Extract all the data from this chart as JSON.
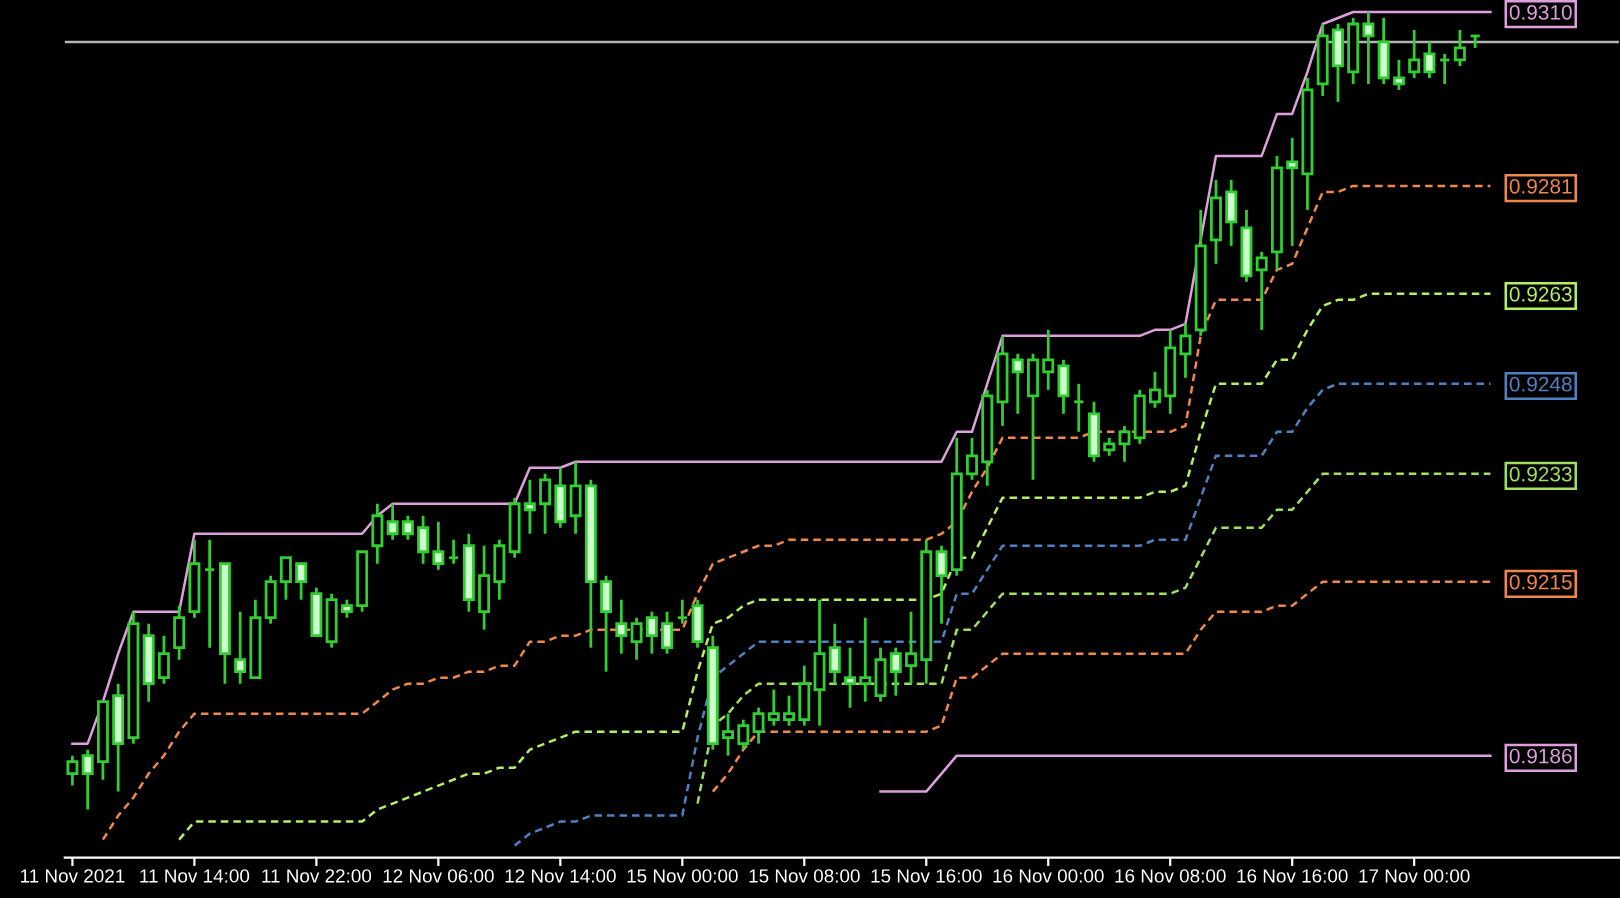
{
  "chart_data": {
    "type": "candlestick",
    "color": "#32cd32",
    "grid": false,
    "legend": false,
    "ylim": [
      0.9169,
      0.9312
    ],
    "yticks": [
      0.9186,
      0.9215,
      0.9233,
      0.9248,
      0.9263,
      0.9281,
      {
        "value": 0.931,
        "label": "0.9310"
      }
    ],
    "categories": [
      "11 Nov 2021",
      null,
      null,
      null,
      null,
      null,
      null,
      null,
      "11 Nov 14:00",
      null,
      null,
      null,
      null,
      null,
      null,
      null,
      "11 Nov 22:00",
      null,
      null,
      null,
      null,
      null,
      null,
      null,
      "12 Nov 06:00",
      null,
      null,
      null,
      null,
      null,
      null,
      null,
      "12 Nov 14:00",
      null,
      null,
      null,
      null,
      null,
      null,
      null,
      "15 Nov 00:00",
      null,
      null,
      null,
      null,
      null,
      null,
      null,
      "15 Nov 08:00",
      null,
      null,
      null,
      null,
      null,
      null,
      null,
      "15 Nov 16:00",
      null,
      null,
      null,
      null,
      null,
      null,
      null,
      "16 Nov 00:00",
      null,
      null,
      null,
      null,
      null,
      null,
      null,
      "16 Nov 08:00",
      null,
      null,
      null,
      null,
      null,
      null,
      null,
      "16 Nov 16:00",
      null,
      null,
      null,
      null,
      null,
      null,
      null,
      "17 Nov 00:00",
      null,
      null,
      null,
      null,
      null,
      null,
      null,
      null,
      null,
      null,
      null,
      null,
      null
    ],
    "ohlc": [
      [
        0.9183,
        0.9186,
        0.9181,
        0.9185
      ],
      [
        0.9186,
        0.9187,
        0.9177,
        0.9183
      ],
      [
        0.9185,
        0.9195,
        0.9182,
        0.9195
      ],
      [
        0.9196,
        0.9198,
        0.918,
        0.9188
      ],
      [
        0.9189,
        0.921,
        0.9188,
        0.9208
      ],
      [
        0.9206,
        0.9208,
        0.9195,
        0.9198
      ],
      [
        0.9199,
        0.9206,
        0.9198,
        0.9203
      ],
      [
        0.9204,
        0.9211,
        0.9202,
        0.9209
      ],
      [
        0.921,
        0.9222,
        0.9209,
        0.9218
      ],
      [
        0.9217,
        0.9222,
        0.9204,
        0.9217
      ],
      [
        0.9218,
        0.9218,
        0.9198,
        0.9203
      ],
      [
        0.9202,
        0.921,
        0.9198,
        0.92
      ],
      [
        0.9199,
        0.9212,
        0.9199,
        0.9209
      ],
      [
        0.9209,
        0.9216,
        0.9208,
        0.9215
      ],
      [
        0.9215,
        0.9219,
        0.9212,
        0.9219
      ],
      [
        0.9218,
        0.9218,
        0.9212,
        0.9215
      ],
      [
        0.9213,
        0.9214,
        0.9206,
        0.9206
      ],
      [
        0.9205,
        0.9213,
        0.9204,
        0.9212
      ],
      [
        0.9211,
        0.9212,
        0.9209,
        0.921
      ],
      [
        0.9211,
        0.922,
        0.921,
        0.922
      ],
      [
        0.9221,
        0.9228,
        0.9218,
        0.9226
      ],
      [
        0.9225,
        0.9228,
        0.9222,
        0.9223
      ],
      [
        0.9225,
        0.9226,
        0.9222,
        0.9223
      ],
      [
        0.9224,
        0.9226,
        0.9218,
        0.922
      ],
      [
        0.922,
        0.9225,
        0.9217,
        0.9218
      ],
      [
        0.9219,
        0.9222,
        0.9218,
        0.9219
      ],
      [
        0.9221,
        0.9223,
        0.921,
        0.9212
      ],
      [
        0.921,
        0.9221,
        0.9207,
        0.9216
      ],
      [
        0.9215,
        0.9222,
        0.9212,
        0.9221
      ],
      [
        0.922,
        0.9229,
        0.9219,
        0.9228
      ],
      [
        0.9228,
        0.9232,
        0.9223,
        0.9227
      ],
      [
        0.9228,
        0.9233,
        0.9223,
        0.9232
      ],
      [
        0.9231,
        0.9234,
        0.9224,
        0.9225
      ],
      [
        0.9226,
        0.9235,
        0.9223,
        0.9231
      ],
      [
        0.9231,
        0.9232,
        0.9204,
        0.9215
      ],
      [
        0.9215,
        0.9216,
        0.92,
        0.921
      ],
      [
        0.9208,
        0.9212,
        0.9203,
        0.9206
      ],
      [
        0.9205,
        0.9209,
        0.9202,
        0.9208
      ],
      [
        0.9209,
        0.921,
        0.9203,
        0.9206
      ],
      [
        0.9208,
        0.921,
        0.9203,
        0.9204
      ],
      [
        0.9209,
        0.9212,
        0.9208,
        0.9209
      ],
      [
        0.9211,
        0.9212,
        0.9204,
        0.9205
      ],
      [
        0.9204,
        0.9206,
        0.9187,
        0.9188
      ],
      [
        0.9189,
        0.9193,
        0.9186,
        0.919
      ],
      [
        0.9188,
        0.9192,
        0.9187,
        0.9191
      ],
      [
        0.919,
        0.9194,
        0.9188,
        0.9193
      ],
      [
        0.9192,
        0.9197,
        0.9191,
        0.9193
      ],
      [
        0.9192,
        0.9196,
        0.9191,
        0.9193
      ],
      [
        0.9192,
        0.9201,
        0.9191,
        0.9198
      ],
      [
        0.9197,
        0.9212,
        0.9191,
        0.9203
      ],
      [
        0.9204,
        0.9208,
        0.9198,
        0.92
      ],
      [
        0.9199,
        0.9204,
        0.9194,
        0.9198
      ],
      [
        0.9198,
        0.9209,
        0.9195,
        0.9199
      ],
      [
        0.9196,
        0.9204,
        0.9195,
        0.9202
      ],
      [
        0.9203,
        0.9204,
        0.9196,
        0.92
      ],
      [
        0.9201,
        0.921,
        0.9198,
        0.9203
      ],
      [
        0.9202,
        0.9222,
        0.9198,
        0.922
      ],
      [
        0.922,
        0.9221,
        0.9208,
        0.9216
      ],
      [
        0.9217,
        0.9239,
        0.9216,
        0.9233
      ],
      [
        0.9233,
        0.9239,
        0.9232,
        0.9236
      ],
      [
        0.9235,
        0.9247,
        0.9231,
        0.9246
      ],
      [
        0.9245,
        0.9256,
        0.9241,
        0.9253
      ],
      [
        0.9252,
        0.9253,
        0.9243,
        0.925
      ],
      [
        0.9246,
        0.9253,
        0.9232,
        0.9252
      ],
      [
        0.925,
        0.9257,
        0.9247,
        0.9252
      ],
      [
        0.9251,
        0.9252,
        0.9243,
        0.9246
      ],
      [
        0.9245,
        0.9248,
        0.924,
        0.9245
      ],
      [
        0.9243,
        0.9245,
        0.9235,
        0.9236
      ],
      [
        0.9237,
        0.9239,
        0.9236,
        0.9238
      ],
      [
        0.9238,
        0.9241,
        0.9235,
        0.924
      ],
      [
        0.9239,
        0.9247,
        0.9238,
        0.9246
      ],
      [
        0.9245,
        0.925,
        0.9244,
        0.9247
      ],
      [
        0.9246,
        0.9257,
        0.9243,
        0.9254
      ],
      [
        0.9253,
        0.9258,
        0.9249,
        0.9256
      ],
      [
        0.9257,
        0.9277,
        0.9256,
        0.9271
      ],
      [
        0.9272,
        0.9282,
        0.9268,
        0.9279
      ],
      [
        0.928,
        0.9282,
        0.9271,
        0.9275
      ],
      [
        0.9274,
        0.9277,
        0.9265,
        0.9266
      ],
      [
        0.9267,
        0.927,
        0.9257,
        0.9269
      ],
      [
        0.927,
        0.9286,
        0.9267,
        0.9284
      ],
      [
        0.9285,
        0.9289,
        0.9271,
        0.9284
      ],
      [
        0.9283,
        0.9299,
        0.9277,
        0.9297
      ],
      [
        0.9298,
        0.9308,
        0.9296,
        0.9306
      ],
      [
        0.9307,
        0.9308,
        0.9295,
        0.9301
      ],
      [
        0.93,
        0.9309,
        0.9298,
        0.9308
      ],
      [
        0.9308,
        0.931,
        0.9298,
        0.9306
      ],
      [
        0.9305,
        0.9309,
        0.9298,
        0.9299
      ],
      [
        0.9299,
        0.9302,
        0.9297,
        0.9298
      ],
      [
        0.93,
        0.9307,
        0.9299,
        0.9302
      ],
      [
        0.9303,
        0.9305,
        0.9299,
        0.93
      ],
      [
        0.9302,
        0.9303,
        0.9298,
        0.9302
      ],
      [
        0.9302,
        0.9307,
        0.9301,
        0.9304
      ],
      [
        0.9306,
        0.9306,
        0.9304,
        0.9306
      ],
      null,
      null,
      null,
      null,
      null,
      null,
      null,
      null,
      null
    ],
    "series": [
      {
        "type": "line",
        "color": "#dda0dd",
        "line_style": "solid",
        "values": [
          0.9188,
          0.9188,
          0.9195,
          0.9203,
          0.921,
          0.921,
          0.921,
          0.921,
          0.9223,
          0.9223,
          0.9223,
          0.9223,
          0.9223,
          0.9223,
          0.9223,
          0.9223,
          0.9223,
          0.9223,
          0.9223,
          0.9223,
          0.9226,
          0.9228,
          0.9228,
          0.9228,
          0.9228,
          0.9228,
          0.9228,
          0.9228,
          0.9228,
          0.9228,
          0.9234,
          0.9234,
          0.9234,
          0.9235,
          0.9235,
          0.9235,
          0.9235,
          0.9235,
          0.9235,
          0.9235,
          0.9235,
          0.9235,
          0.9235,
          0.9235,
          0.9235,
          0.9235,
          0.9235,
          0.9235,
          0.9235,
          0.9235,
          0.9235,
          0.9235,
          0.9235,
          0.9235,
          0.9235,
          0.9235,
          0.9235,
          0.9235,
          0.924,
          0.924,
          0.9248,
          0.9256,
          0.9256,
          0.9256,
          0.9256,
          0.9256,
          0.9256,
          0.9256,
          0.9256,
          0.9256,
          0.9256,
          0.9257,
          0.9257,
          0.9258,
          0.9272,
          0.9286,
          0.9286,
          0.9286,
          0.9286,
          0.9293,
          0.9293,
          0.93,
          0.9308,
          0.9309,
          0.931,
          0.931,
          0.931,
          0.931,
          0.931,
          0.931,
          0.931,
          0.931,
          0.931,
          0.931,
          null,
          null,
          null,
          null,
          null,
          null,
          null,
          null
        ]
      },
      {
        "type": "line",
        "color": "#f0884c",
        "line_style": "dashed",
        "values": [
          null,
          null,
          0.9172,
          0.9176,
          0.9179,
          0.9183,
          0.9186,
          0.919,
          0.9193,
          0.9193,
          0.9193,
          0.9193,
          0.9193,
          0.9193,
          0.9193,
          0.9193,
          0.9193,
          0.9193,
          0.9193,
          0.9193,
          0.9195,
          0.9197,
          0.9198,
          0.9198,
          0.9199,
          0.9199,
          0.92,
          0.92,
          0.9201,
          0.9201,
          0.9205,
          0.9205,
          0.9206,
          0.9206,
          0.9207,
          0.9207,
          0.9207,
          0.9207,
          0.9207,
          0.9207,
          0.9207,
          0.9213,
          0.9218,
          0.9219,
          0.922,
          0.9221,
          0.9221,
          0.9222,
          0.9222,
          0.9222,
          0.9222,
          0.9222,
          0.9222,
          0.9222,
          0.9222,
          0.9222,
          0.9222,
          0.9223,
          0.9225,
          0.923,
          0.9234,
          0.9239,
          0.9239,
          0.9239,
          0.9239,
          0.9239,
          0.9239,
          0.924,
          0.924,
          0.924,
          0.924,
          0.924,
          0.924,
          0.9241,
          0.9256,
          0.9262,
          0.9262,
          0.9262,
          0.9262,
          0.9267,
          0.9268,
          0.9274,
          0.928,
          0.928,
          0.9281,
          0.9281,
          0.9281,
          0.9281,
          0.9281,
          0.9281,
          0.9281,
          0.9281,
          0.9281,
          0.9281,
          null,
          null,
          null,
          null,
          null,
          null,
          null,
          null
        ]
      },
      {
        "type": "line",
        "color": "#b4f064",
        "line_style": "dashed",
        "values": [
          null,
          null,
          null,
          null,
          null,
          null,
          null,
          0.9172,
          0.9175,
          0.9175,
          0.9175,
          0.9175,
          0.9175,
          0.9175,
          0.9175,
          0.9175,
          0.9175,
          0.9175,
          0.9175,
          0.9175,
          0.9177,
          0.9178,
          0.9179,
          0.918,
          0.9181,
          0.9182,
          0.9183,
          0.9183,
          0.9184,
          0.9184,
          0.9187,
          0.9188,
          0.9189,
          0.919,
          0.919,
          0.919,
          0.919,
          0.919,
          0.919,
          0.919,
          0.919,
          0.92,
          0.9208,
          0.9209,
          0.9211,
          0.9212,
          0.9212,
          0.9212,
          0.9212,
          0.9212,
          0.9212,
          0.9212,
          0.9212,
          0.9212,
          0.9212,
          0.9212,
          0.9212,
          0.9213,
          0.9219,
          0.9219,
          0.9224,
          0.9229,
          0.9229,
          0.9229,
          0.9229,
          0.9229,
          0.9229,
          0.9229,
          0.9229,
          0.9229,
          0.9229,
          0.923,
          0.923,
          0.9231,
          0.924,
          0.9248,
          0.9248,
          0.9248,
          0.9248,
          0.9252,
          0.9252,
          0.9257,
          0.9261,
          0.9262,
          0.9262,
          0.9263,
          0.9263,
          0.9263,
          0.9263,
          0.9263,
          0.9263,
          0.9263,
          0.9263,
          0.9263,
          null,
          null,
          null,
          null,
          null,
          null,
          null,
          null
        ]
      },
      {
        "type": "line",
        "color": "#5080c0",
        "line_style": "dashed",
        "values": [
          null,
          null,
          null,
          null,
          null,
          null,
          null,
          null,
          null,
          null,
          null,
          null,
          null,
          null,
          null,
          null,
          null,
          null,
          null,
          null,
          null,
          null,
          null,
          null,
          null,
          null,
          null,
          null,
          null,
          0.9171,
          0.9173,
          0.9174,
          0.9175,
          0.9175,
          0.9176,
          0.9176,
          0.9176,
          0.9176,
          0.9176,
          0.9176,
          0.9176,
          0.9189,
          0.9199,
          0.9201,
          0.9203,
          0.9205,
          0.9205,
          0.9205,
          0.9205,
          0.9205,
          0.9205,
          0.9205,
          0.9205,
          0.9205,
          0.9205,
          0.9205,
          0.9205,
          0.9205,
          0.9213,
          0.9213,
          0.9217,
          0.9221,
          0.9221,
          0.9221,
          0.9221,
          0.9221,
          0.9221,
          0.9221,
          0.9221,
          0.9221,
          0.9221,
          0.9222,
          0.9222,
          0.9222,
          0.9229,
          0.9236,
          0.9236,
          0.9236,
          0.9236,
          0.924,
          0.924,
          0.9244,
          0.9247,
          0.9248,
          0.9248,
          0.9248,
          0.9248,
          0.9248,
          0.9248,
          0.9248,
          0.9248,
          0.9248,
          0.9248,
          0.9248,
          null,
          null,
          null,
          null,
          null,
          null,
          null,
          null
        ]
      },
      {
        "type": "line",
        "color": "#a0e060",
        "line_style": "dashed",
        "values": [
          null,
          null,
          null,
          null,
          null,
          null,
          null,
          null,
          null,
          null,
          null,
          null,
          null,
          null,
          null,
          null,
          null,
          null,
          null,
          null,
          null,
          null,
          null,
          null,
          null,
          null,
          null,
          null,
          null,
          null,
          null,
          null,
          null,
          null,
          null,
          null,
          null,
          null,
          null,
          null,
          null,
          0.9178,
          0.9191,
          0.9193,
          0.9196,
          0.9198,
          0.9198,
          0.9198,
          0.9198,
          0.9198,
          0.9198,
          0.9198,
          0.9198,
          0.9198,
          0.9198,
          0.9198,
          0.9198,
          0.9198,
          0.9207,
          0.9207,
          0.921,
          0.9213,
          0.9213,
          0.9213,
          0.9213,
          0.9213,
          0.9213,
          0.9213,
          0.9213,
          0.9213,
          0.9213,
          0.9213,
          0.9213,
          0.9214,
          0.9219,
          0.9224,
          0.9224,
          0.9224,
          0.9224,
          0.9227,
          0.9227,
          0.923,
          0.9233,
          0.9233,
          0.9233,
          0.9233,
          0.9233,
          0.9233,
          0.9233,
          0.9233,
          0.9233,
          0.9233,
          0.9233,
          0.9233,
          null,
          null,
          null,
          null,
          null,
          null,
          null,
          null
        ]
      },
      {
        "type": "line",
        "color": "#f0884c",
        "line_style": "dashed",
        "values": [
          null,
          null,
          null,
          null,
          null,
          null,
          null,
          null,
          null,
          null,
          null,
          null,
          null,
          null,
          null,
          null,
          null,
          null,
          null,
          null,
          null,
          null,
          null,
          null,
          null,
          null,
          null,
          null,
          null,
          null,
          null,
          null,
          null,
          null,
          null,
          null,
          null,
          null,
          null,
          null,
          null,
          null,
          0.918,
          0.9183,
          0.9187,
          0.919,
          0.919,
          0.919,
          0.919,
          0.919,
          0.919,
          0.919,
          0.919,
          0.919,
          0.919,
          0.919,
          0.919,
          0.9191,
          0.9199,
          0.9199,
          0.9201,
          0.9203,
          0.9203,
          0.9203,
          0.9203,
          0.9203,
          0.9203,
          0.9203,
          0.9203,
          0.9203,
          0.9203,
          0.9203,
          0.9203,
          0.9203,
          0.9207,
          0.921,
          0.921,
          0.921,
          0.921,
          0.9211,
          0.9211,
          0.9213,
          0.9215,
          0.9215,
          0.9215,
          0.9215,
          0.9215,
          0.9215,
          0.9215,
          0.9215,
          0.9215,
          0.9215,
          0.9215,
          0.9215,
          null,
          null,
          null,
          null,
          null,
          null,
          null,
          null
        ]
      },
      {
        "type": "line",
        "color": "#dda0dd",
        "line_style": "solid",
        "values": [
          null,
          null,
          null,
          null,
          null,
          null,
          null,
          null,
          null,
          null,
          null,
          null,
          null,
          null,
          null,
          null,
          null,
          null,
          null,
          null,
          null,
          null,
          null,
          null,
          null,
          null,
          null,
          null,
          null,
          null,
          null,
          null,
          null,
          null,
          null,
          null,
          null,
          null,
          null,
          null,
          null,
          null,
          null,
          null,
          null,
          null,
          null,
          null,
          null,
          null,
          null,
          null,
          null,
          0.918,
          0.918,
          0.918,
          0.918,
          0.9183,
          0.9186,
          0.9186,
          0.9186,
          0.9186,
          0.9186,
          0.9186,
          0.9186,
          0.9186,
          0.9186,
          0.9186,
          0.9186,
          0.9186,
          0.9186,
          0.9186,
          0.9186,
          0.9186,
          0.9186,
          0.9186,
          0.9186,
          0.9186,
          0.9186,
          0.9186,
          0.9186,
          0.9186,
          0.9186,
          0.9186,
          0.9186,
          0.9186,
          0.9186,
          0.9186,
          0.9186,
          0.9186,
          0.9186,
          0.9186,
          0.9186,
          0.9186,
          null,
          null,
          null,
          null,
          null,
          null,
          null,
          null
        ]
      }
    ],
    "ref_lines": [
      {
        "axis": "y",
        "value": 0.9305,
        "color": "#b4b4b4",
        "line_style": "solid"
      }
    ]
  }
}
